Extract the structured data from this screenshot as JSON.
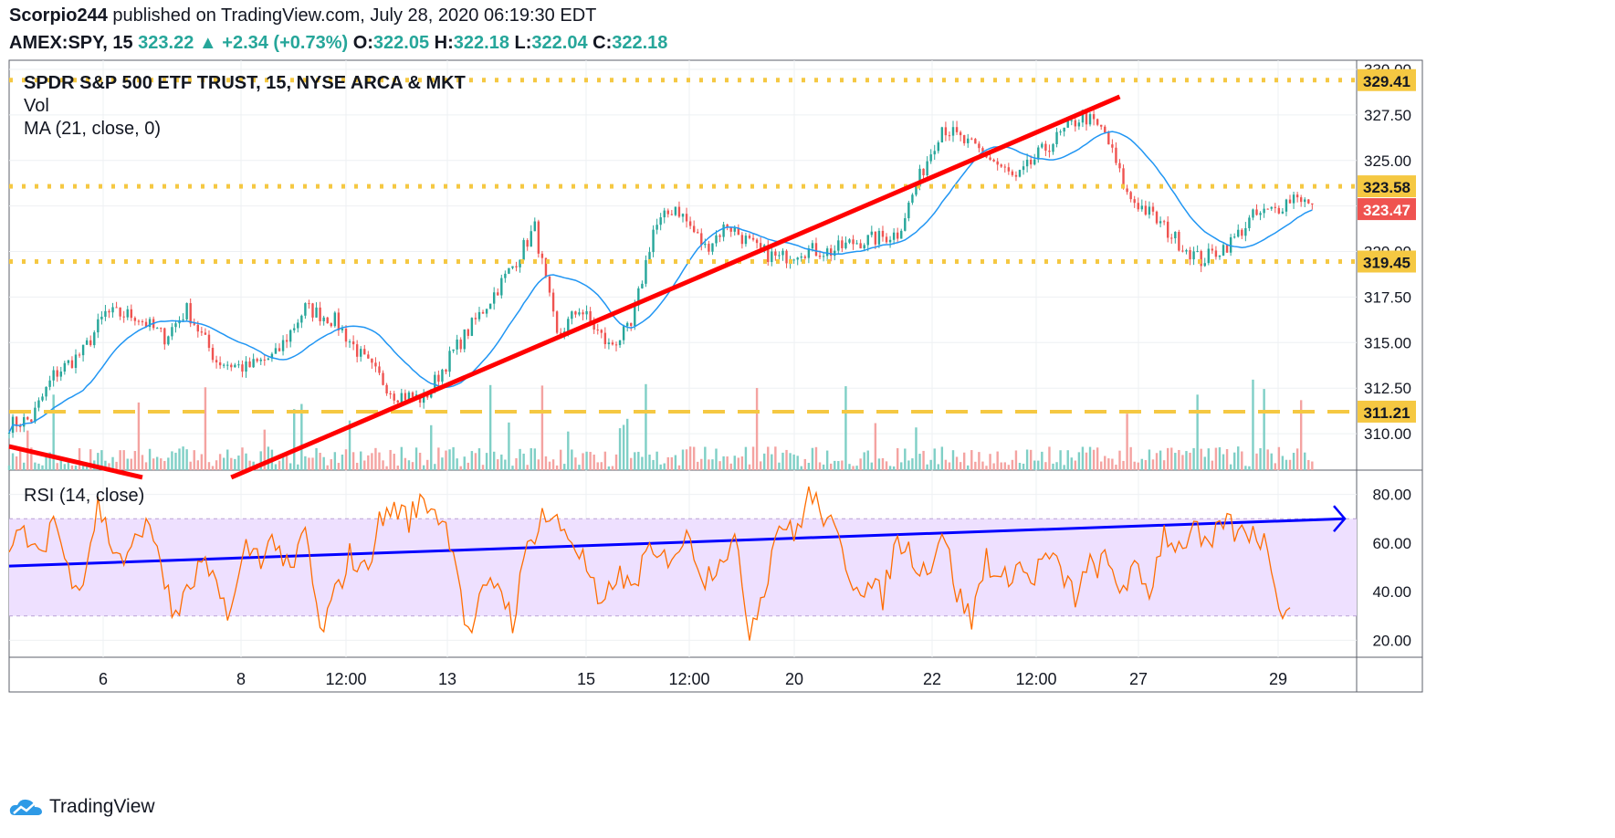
{
  "header": {
    "author": "Scorpio244",
    "published_text": "published on TradingView.com, July 28, 2020 06:19:30 EDT",
    "symbol": "AMEX:SPY, 15",
    "last": "323.22",
    "change": "+2.34 (+0.73%)",
    "open_label": "O:",
    "open": "322.05",
    "high_label": "H:",
    "high": "322.18",
    "low_label": "L:",
    "low": "322.04",
    "close_label": "C:",
    "close": "322.18"
  },
  "legend": {
    "title": "SPDR S&P 500 ETF TRUST, 15, NYSE ARCA & MKT",
    "vol": "Vol",
    "ma": "MA (21, close, 0)",
    "rsi": "RSI (14, close)"
  },
  "brand": {
    "name": "TradingView"
  },
  "colors": {
    "up": "#26a69a",
    "down": "#ef5350",
    "ma": "#2196f3",
    "rsi": "#ff6d00",
    "support": "#f5c842",
    "trendline": "#ff0000",
    "rsi_trend": "#0000ff",
    "rsi_band": "#eee0ff"
  },
  "chart_data": [
    {
      "type": "candlestick",
      "title": "SPDR S&P 500 ETF TRUST, 15, NYSE ARCA & MKT",
      "x_ticks": [
        "6",
        "8",
        "12:00",
        "13",
        "15",
        "12:00",
        "20",
        "22",
        "12:00",
        "27",
        "29"
      ],
      "y_ticks": [
        "310.00",
        "312.50",
        "315.00",
        "317.50",
        "320.00",
        "322.50",
        "325.00",
        "327.50",
        "330.00"
      ],
      "ylim": [
        308,
        330.5
      ],
      "close_path": [
        [
          0,
          310.5
        ],
        [
          3,
          310.8
        ],
        [
          6,
          313.2
        ],
        [
          10,
          314.5
        ],
        [
          13,
          316.6
        ],
        [
          17,
          316.5
        ],
        [
          21,
          315.3
        ],
        [
          24,
          316.8
        ],
        [
          28,
          314.0
        ],
        [
          32,
          313.6
        ],
        [
          36,
          314.3
        ],
        [
          40,
          316.9
        ],
        [
          44,
          316.2
        ],
        [
          48,
          314.0
        ],
        [
          52,
          312.2
        ],
        [
          56,
          311.9
        ],
        [
          60,
          314.5
        ],
        [
          64,
          316.8
        ],
        [
          68,
          319.2
        ],
        [
          71,
          321.3
        ],
        [
          74,
          315.3
        ],
        [
          77,
          316.9
        ],
        [
          81,
          314.8
        ],
        [
          84,
          315.8
        ],
        [
          87,
          321.2
        ],
        [
          90,
          322.5
        ],
        [
          94,
          320.2
        ],
        [
          97,
          321.5
        ],
        [
          101,
          320.1
        ],
        [
          104,
          319.6
        ],
        [
          107,
          320.1
        ],
        [
          111,
          320.0
        ],
        [
          114,
          320.5
        ],
        [
          117,
          320.7
        ],
        [
          120,
          321.0
        ],
        [
          123,
          324.1
        ],
        [
          126,
          326.9
        ],
        [
          129,
          326.0
        ],
        [
          132,
          325.3
        ],
        [
          136,
          323.9
        ],
        [
          139,
          325.3
        ],
        [
          142,
          326.4
        ],
        [
          145,
          327.5
        ],
        [
          148,
          326.5
        ],
        [
          151,
          323.1
        ],
        [
          154,
          322.1
        ],
        [
          158,
          320.5
        ],
        [
          161,
          319.5
        ],
        [
          165,
          320.5
        ],
        [
          168,
          321.9
        ],
        [
          171,
          322.3
        ],
        [
          174,
          323.2
        ],
        [
          176,
          322.3
        ]
      ],
      "ma_label": "MA (21, close, 0)",
      "volume_label": "Vol",
      "price_labels": [
        "329.41",
        "323.58",
        "323.47",
        "319.45",
        "311.21"
      ],
      "horizontal_levels": [
        329.41,
        323.58,
        319.45,
        311.21
      ],
      "trendlines": [
        [
          [
            0,
            309.3
          ],
          [
            18,
            307.6
          ]
        ],
        [
          [
            30,
            307.6
          ],
          [
            150,
            328.5
          ]
        ]
      ]
    },
    {
      "type": "line",
      "title": "RSI (14, close)",
      "y_ticks": [
        "20.00",
        "40.00",
        "60.00",
        "80.00"
      ],
      "ylim": [
        13,
        90
      ],
      "band": [
        30,
        70
      ],
      "path": [
        [
          0,
          55
        ],
        [
          2,
          65
        ],
        [
          4,
          52
        ],
        [
          6,
          72
        ],
        [
          8,
          48
        ],
        [
          10,
          45
        ],
        [
          12,
          76
        ],
        [
          14,
          58
        ],
        [
          16,
          52
        ],
        [
          18,
          68
        ],
        [
          20,
          60
        ],
        [
          22,
          30
        ],
        [
          24,
          38
        ],
        [
          26,
          52
        ],
        [
          28,
          40
        ],
        [
          30,
          32
        ],
        [
          32,
          58
        ],
        [
          34,
          55
        ],
        [
          36,
          62
        ],
        [
          38,
          45
        ],
        [
          40,
          66
        ],
        [
          42,
          22
        ],
        [
          44,
          38
        ],
        [
          46,
          55
        ],
        [
          48,
          48
        ],
        [
          50,
          68
        ],
        [
          52,
          75
        ],
        [
          54,
          70
        ],
        [
          56,
          78
        ],
        [
          58,
          72
        ],
        [
          60,
          60
        ],
        [
          62,
          21
        ],
        [
          64,
          38
        ],
        [
          66,
          45
        ],
        [
          68,
          28
        ],
        [
          70,
          58
        ],
        [
          72,
          72
        ],
        [
          74,
          68
        ],
        [
          76,
          62
        ],
        [
          78,
          50
        ],
        [
          80,
          30
        ],
        [
          82,
          48
        ],
        [
          84,
          40
        ],
        [
          86,
          55
        ],
        [
          88,
          52
        ],
        [
          90,
          58
        ],
        [
          92,
          62
        ],
        [
          94,
          45
        ],
        [
          96,
          55
        ],
        [
          98,
          60
        ],
        [
          100,
          25
        ],
        [
          102,
          42
        ],
        [
          104,
          70
        ],
        [
          106,
          62
        ],
        [
          108,
          80
        ],
        [
          110,
          72
        ],
        [
          112,
          60
        ],
        [
          114,
          45
        ],
        [
          116,
          42
        ],
        [
          118,
          38
        ],
        [
          120,
          62
        ],
        [
          122,
          55
        ],
        [
          124,
          48
        ],
        [
          126,
          66
        ],
        [
          128,
          40
        ],
        [
          130,
          28
        ],
        [
          132,
          55
        ],
        [
          134,
          42
        ],
        [
          136,
          52
        ],
        [
          138,
          44
        ],
        [
          140,
          55
        ],
        [
          142,
          48
        ],
        [
          144,
          38
        ],
        [
          146,
          50
        ],
        [
          148,
          52
        ],
        [
          150,
          42
        ],
        [
          152,
          48
        ],
        [
          154,
          40
        ],
        [
          156,
          65
        ],
        [
          158,
          58
        ],
        [
          160,
          66
        ],
        [
          162,
          55
        ],
        [
          164,
          70
        ],
        [
          166,
          63
        ],
        [
          168,
          66
        ],
        [
          170,
          58
        ],
        [
          172,
          32
        ],
        [
          173,
          31
        ]
      ],
      "trendline": [
        [
          0,
          50.5
        ],
        [
          182,
          70
        ]
      ]
    }
  ]
}
